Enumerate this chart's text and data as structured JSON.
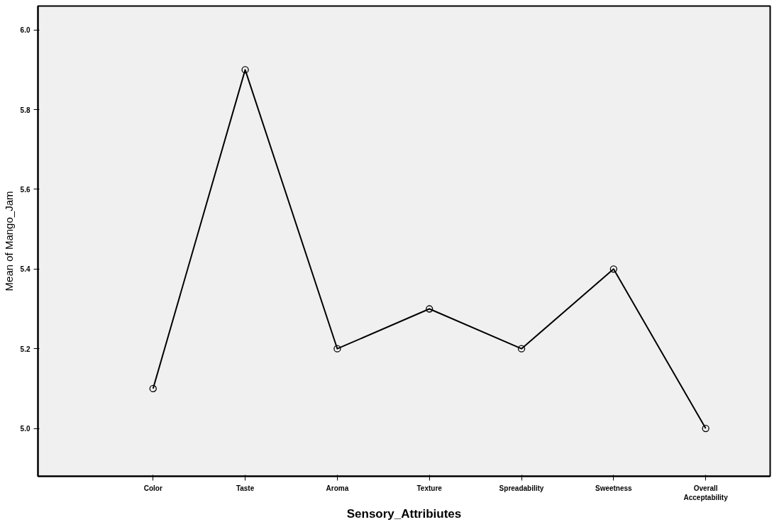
{
  "chart_data": {
    "type": "line",
    "xlabel": "Sensory_Attribiutes",
    "ylabel": "Mean of Mango_Jam",
    "categories": [
      "Color",
      "Taste",
      "Aroma",
      "Texture",
      "Spreadability",
      "Sweetness",
      "Overall Acceptability"
    ],
    "series": [
      {
        "color": "#000000",
        "values": [
          5.1,
          5.9,
          5.2,
          5.3,
          5.2,
          5.4,
          5.0
        ]
      }
    ],
    "ylim": [
      4.88,
      6.06
    ],
    "yticks": [
      {
        "value": 5,
        "label": "5.0"
      },
      5.2,
      5.4,
      5.6,
      5.8,
      {
        "value": 6,
        "label": "6.0"
      }
    ],
    "marker": "circle",
    "line_style": "solid",
    "grid": false
  }
}
